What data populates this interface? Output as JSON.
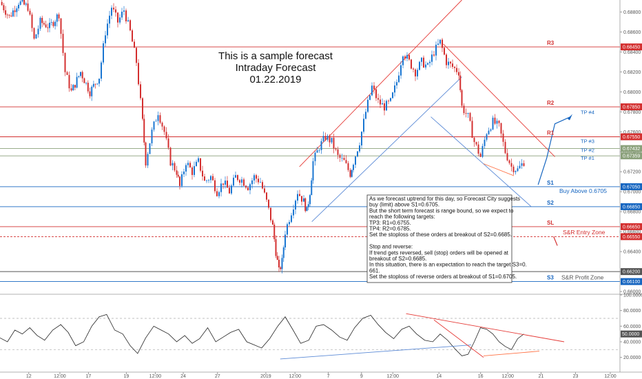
{
  "title_lines": [
    "This is a sample forecast",
    "Intraday Forecast",
    "01.22.2019"
  ],
  "chart_data": [
    {
      "type": "candlestick",
      "instrument": "",
      "price_axis": {
        "min": 0.6598,
        "max": 0.6892,
        "tick_labels": [
          "0.68800",
          "0.68600",
          "0.68400",
          "0.68200",
          "0.68000",
          "0.67800",
          "0.67600",
          "0.67400",
          "0.67200",
          "0.67000",
          "0.66800",
          "0.66600",
          "0.66400",
          "0.66200",
          "0.66000"
        ],
        "tick_values": [
          0.688,
          0.686,
          0.684,
          0.682,
          0.68,
          0.678,
          0.676,
          0.674,
          0.672,
          0.67,
          0.668,
          0.666,
          0.664,
          0.662,
          0.66
        ]
      },
      "time_axis": {
        "labels": [
          "12",
          "12:00",
          "17",
          "19",
          "12:00",
          "24",
          "27",
          "2019",
          "12:00",
          "7",
          "9",
          "12:00",
          "14",
          "16",
          "12:00",
          "21",
          "23",
          "12:00"
        ],
        "positions": [
          0.0464,
          0.0966,
          0.1427,
          0.2038,
          0.2505,
          0.2956,
          0.3508,
          0.4288,
          0.4758,
          0.5295,
          0.5831,
          0.6336,
          0.708,
          0.7752,
          0.8191,
          0.8727,
          0.9283,
          0.9844
        ]
      },
      "levels": [
        {
          "name": "R3",
          "value": 0.6845,
          "label": "0.68450",
          "color": "#d32f2f",
          "style": "solid"
        },
        {
          "name": "R2",
          "value": 0.6785,
          "label": "0.67850",
          "color": "#d32f2f",
          "style": "solid"
        },
        {
          "name": "R1",
          "value": 0.6755,
          "label": "0.67550",
          "color": "#d32f2f",
          "style": "solid"
        },
        {
          "name": "",
          "value": 0.67432,
          "label": "0.67432",
          "color": "#8aa07a",
          "style": "solid"
        },
        {
          "name": "",
          "value": 0.67359,
          "label": "0.67359",
          "color": "#8aa07a",
          "style": "solid"
        },
        {
          "name": "S1",
          "value": 0.6705,
          "label": "0.67050",
          "color": "#1565c0",
          "style": "solid"
        },
        {
          "name": "S2",
          "value": 0.6685,
          "label": "0.66850",
          "color": "#1565c0",
          "style": "solid"
        },
        {
          "name": "SL",
          "value": 0.6665,
          "label": "0.66650",
          "color": "#d32f2f",
          "style": "solid"
        },
        {
          "name": "",
          "value": 0.6655,
          "label": "0.66550",
          "color": "#d32f2f",
          "style": "dashed"
        },
        {
          "name": "",
          "value": 0.662,
          "label": "0.66200",
          "color": "#555555",
          "style": "solid"
        },
        {
          "name": "S3",
          "value": 0.661,
          "label": "0.66100",
          "color": "#1565c0",
          "style": "solid"
        }
      ],
      "targets": [
        {
          "label": "TP #4",
          "value": 0.678
        },
        {
          "label": "TP #3",
          "value": 0.6751
        },
        {
          "label": "TP #2",
          "value": 0.6742
        },
        {
          "label": "TP #1",
          "value": 0.6734
        }
      ],
      "zones": [
        {
          "label": "Buy Above 0.6705",
          "color": "#1565c0"
        },
        {
          "label": "S&R Entry Zone",
          "color": "#d32f2f"
        },
        {
          "label": "S&R Profit Zone",
          "color": "#555555"
        }
      ],
      "price_path": [
        [
          0.0,
          0.689
        ],
        [
          0.015,
          0.6875
        ],
        [
          0.03,
          0.689
        ],
        [
          0.045,
          0.6885
        ],
        [
          0.055,
          0.6852
        ],
        [
          0.065,
          0.687
        ],
        [
          0.08,
          0.6865
        ],
        [
          0.095,
          0.6878
        ],
        [
          0.105,
          0.682
        ],
        [
          0.115,
          0.68
        ],
        [
          0.13,
          0.682
        ],
        [
          0.145,
          0.68
        ],
        [
          0.16,
          0.6815
        ],
        [
          0.17,
          0.686
        ],
        [
          0.18,
          0.6885
        ],
        [
          0.19,
          0.687
        ],
        [
          0.2,
          0.6882
        ],
        [
          0.21,
          0.686
        ],
        [
          0.22,
          0.683
        ],
        [
          0.23,
          0.677
        ],
        [
          0.235,
          0.673
        ],
        [
          0.245,
          0.676
        ],
        [
          0.255,
          0.678
        ],
        [
          0.265,
          0.676
        ],
        [
          0.275,
          0.673
        ],
        [
          0.285,
          0.672
        ],
        [
          0.29,
          0.6705
        ],
        [
          0.3,
          0.673
        ],
        [
          0.31,
          0.672
        ],
        [
          0.32,
          0.673
        ],
        [
          0.33,
          0.671
        ],
        [
          0.34,
          0.6715
        ],
        [
          0.35,
          0.67
        ],
        [
          0.36,
          0.671
        ],
        [
          0.37,
          0.67
        ],
        [
          0.38,
          0.6715
        ],
        [
          0.39,
          0.6712
        ],
        [
          0.4,
          0.6705
        ],
        [
          0.41,
          0.6715
        ],
        [
          0.42,
          0.671
        ],
        [
          0.43,
          0.669
        ],
        [
          0.44,
          0.6665
        ],
        [
          0.445,
          0.664
        ],
        [
          0.45,
          0.662
        ],
        [
          0.455,
          0.663
        ],
        [
          0.46,
          0.666
        ],
        [
          0.47,
          0.668
        ],
        [
          0.48,
          0.67
        ],
        [
          0.49,
          0.669
        ],
        [
          0.495,
          0.668
        ],
        [
          0.5,
          0.67
        ],
        [
          0.505,
          0.673
        ],
        [
          0.515,
          0.6745
        ],
        [
          0.525,
          0.6755
        ],
        [
          0.535,
          0.675
        ],
        [
          0.545,
          0.6735
        ],
        [
          0.555,
          0.673
        ],
        [
          0.565,
          0.6718
        ],
        [
          0.57,
          0.673
        ],
        [
          0.58,
          0.675
        ],
        [
          0.59,
          0.678
        ],
        [
          0.6,
          0.6805
        ],
        [
          0.61,
          0.679
        ],
        [
          0.62,
          0.6785
        ],
        [
          0.63,
          0.679
        ],
        [
          0.64,
          0.681
        ],
        [
          0.65,
          0.684
        ],
        [
          0.66,
          0.683
        ],
        [
          0.67,
          0.682
        ],
        [
          0.68,
          0.683
        ],
        [
          0.69,
          0.6825
        ],
        [
          0.7,
          0.684
        ],
        [
          0.71,
          0.685
        ],
        [
          0.72,
          0.683
        ],
        [
          0.73,
          0.6825
        ],
        [
          0.74,
          0.682
        ],
        [
          0.745,
          0.6785
        ],
        [
          0.755,
          0.6775
        ],
        [
          0.765,
          0.675
        ],
        [
          0.775,
          0.6735
        ],
        [
          0.785,
          0.676
        ],
        [
          0.795,
          0.677
        ],
        [
          0.805,
          0.6765
        ],
        [
          0.815,
          0.674
        ],
        [
          0.825,
          0.6725
        ],
        [
          0.835,
          0.6722
        ],
        [
          0.845,
          0.673
        ]
      ],
      "annotation_lines": [
        "As we forecast uptrend for this day, so Forecast City suggests",
        "buy (limit) above S1=0.6705.",
        "But the short term forecast is range bound, so we expect to",
        "reach the following targets:",
        "TP3: R1=0.6755.",
        "TP4: R2=0.6785.",
        "Set the stoploss of these orders at breakout of S2=0.6685.",
        "",
        "Stop and reverse:",
        "If trend gets reversed, sell (stop) orders will be opened at",
        "breakout of S2=0.6685.",
        "In this situation, there is an expectation to reach the target S3=0.",
        "661.",
        "Set the stoploss of reverse orders at breakout of S1=0.6705."
      ]
    },
    {
      "type": "line",
      "panel": "oscillator",
      "y_axis": {
        "min": 10,
        "max": 100,
        "tick_labels": [
          "100.0000",
          "80.0000",
          "60.0000",
          "40.0000",
          "20.0000"
        ],
        "tick_values": [
          100,
          80,
          60,
          40,
          20
        ],
        "current_label": "50.0000",
        "current_value": 50,
        "dashed_levels": [
          70,
          30
        ]
      },
      "values": [
        [
          0.0,
          45
        ],
        [
          0.012,
          40
        ],
        [
          0.024,
          55
        ],
        [
          0.036,
          50
        ],
        [
          0.048,
          58
        ],
        [
          0.06,
          48
        ],
        [
          0.072,
          42
        ],
        [
          0.085,
          55
        ],
        [
          0.098,
          62
        ],
        [
          0.11,
          52
        ],
        [
          0.122,
          35
        ],
        [
          0.135,
          40
        ],
        [
          0.148,
          60
        ],
        [
          0.16,
          72
        ],
        [
          0.172,
          75
        ],
        [
          0.185,
          55
        ],
        [
          0.198,
          50
        ],
        [
          0.21,
          35
        ],
        [
          0.222,
          25
        ],
        [
          0.235,
          45
        ],
        [
          0.248,
          60
        ],
        [
          0.26,
          55
        ],
        [
          0.272,
          50
        ],
        [
          0.285,
          40
        ],
        [
          0.298,
          48
        ],
        [
          0.31,
          38
        ],
        [
          0.322,
          44
        ],
        [
          0.335,
          58
        ],
        [
          0.348,
          40
        ],
        [
          0.36,
          46
        ],
        [
          0.372,
          52
        ],
        [
          0.385,
          56
        ],
        [
          0.398,
          40
        ],
        [
          0.41,
          36
        ],
        [
          0.422,
          32
        ],
        [
          0.435,
          44
        ],
        [
          0.448,
          60
        ],
        [
          0.46,
          72
        ],
        [
          0.472,
          56
        ],
        [
          0.485,
          38
        ],
        [
          0.498,
          42
        ],
        [
          0.51,
          60
        ],
        [
          0.522,
          62
        ],
        [
          0.535,
          55
        ],
        [
          0.548,
          46
        ],
        [
          0.56,
          42
        ],
        [
          0.572,
          58
        ],
        [
          0.585,
          70
        ],
        [
          0.598,
          74
        ],
        [
          0.61,
          62
        ],
        [
          0.622,
          52
        ],
        [
          0.635,
          44
        ],
        [
          0.648,
          56
        ],
        [
          0.66,
          60
        ],
        [
          0.672,
          50
        ],
        [
          0.685,
          42
        ],
        [
          0.698,
          40
        ],
        [
          0.71,
          50
        ],
        [
          0.722,
          42
        ],
        [
          0.735,
          30
        ],
        [
          0.745,
          22
        ],
        [
          0.755,
          24
        ],
        [
          0.765,
          40
        ],
        [
          0.775,
          58
        ],
        [
          0.785,
          56
        ],
        [
          0.795,
          50
        ],
        [
          0.805,
          40
        ],
        [
          0.815,
          34
        ],
        [
          0.825,
          30
        ],
        [
          0.835,
          44
        ],
        [
          0.845,
          50
        ]
      ]
    }
  ]
}
